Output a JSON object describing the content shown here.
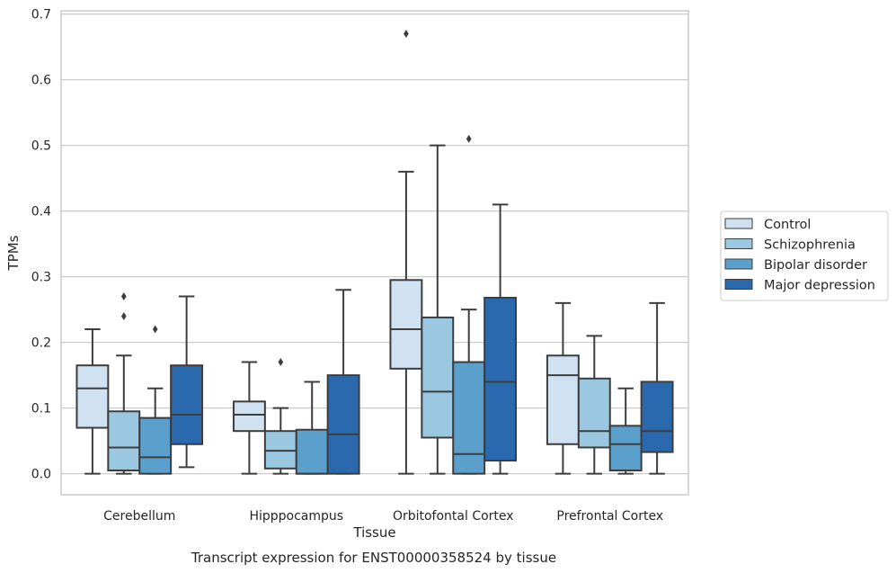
{
  "chart_data": {
    "type": "box",
    "title": "Transcript expression for ENST00000358524 by tissue",
    "xlabel": "Tissue",
    "ylabel": "TPMs",
    "ylim": [
      -0.032,
      0.705
    ],
    "yticks": [
      0.0,
      0.1,
      0.2,
      0.3,
      0.4,
      0.5,
      0.6,
      0.7
    ],
    "ytick_labels": [
      "0.0",
      "0.1",
      "0.2",
      "0.3",
      "0.4",
      "0.5",
      "0.6",
      "0.7"
    ],
    "grid": "horizontal",
    "legend_position": "right",
    "categories": [
      "Cerebellum",
      "Hipppocampus",
      "Orbitofontal Cortex",
      "Prefrontal Cortex"
    ],
    "series": [
      {
        "name": "Control",
        "color": "#d0e1f2",
        "boxes": [
          {
            "whislo": 0.0,
            "q1": 0.07,
            "med": 0.13,
            "q3": 0.165,
            "whishi": 0.22,
            "fliers": []
          },
          {
            "whislo": 0.0,
            "q1": 0.065,
            "med": 0.09,
            "q3": 0.11,
            "whishi": 0.17,
            "fliers": []
          },
          {
            "whislo": 0.0,
            "q1": 0.16,
            "med": 0.22,
            "q3": 0.295,
            "whishi": 0.46,
            "fliers": [
              0.67
            ]
          },
          {
            "whislo": 0.0,
            "q1": 0.045,
            "med": 0.15,
            "q3": 0.18,
            "whishi": 0.26,
            "fliers": []
          }
        ]
      },
      {
        "name": "Schizophrenia",
        "color": "#9ac8e0",
        "boxes": [
          {
            "whislo": 0.0,
            "q1": 0.005,
            "med": 0.04,
            "q3": 0.095,
            "whishi": 0.18,
            "fliers": [
              0.24,
              0.27
            ]
          },
          {
            "whislo": 0.0,
            "q1": 0.008,
            "med": 0.035,
            "q3": 0.065,
            "whishi": 0.1,
            "fliers": [
              0.17
            ]
          },
          {
            "whislo": 0.0,
            "q1": 0.055,
            "med": 0.125,
            "q3": 0.238,
            "whishi": 0.5,
            "fliers": []
          },
          {
            "whislo": 0.0,
            "q1": 0.04,
            "med": 0.065,
            "q3": 0.145,
            "whishi": 0.21,
            "fliers": []
          }
        ]
      },
      {
        "name": "Bipolar disorder",
        "color": "#5b9fcd",
        "boxes": [
          {
            "whislo": 0.0,
            "q1": 0.0,
            "med": 0.025,
            "q3": 0.085,
            "whishi": 0.13,
            "fliers": [
              0.22
            ]
          },
          {
            "whislo": 0.0,
            "q1": 0.0,
            "med": 0.0,
            "q3": 0.067,
            "whishi": 0.14,
            "fliers": []
          },
          {
            "whislo": 0.0,
            "q1": 0.0,
            "med": 0.03,
            "q3": 0.17,
            "whishi": 0.25,
            "fliers": [
              0.51
            ]
          },
          {
            "whislo": 0.0,
            "q1": 0.005,
            "med": 0.045,
            "q3": 0.073,
            "whishi": 0.13,
            "fliers": []
          }
        ]
      },
      {
        "name": "Major depression",
        "color": "#2a69ad",
        "boxes": [
          {
            "whislo": 0.01,
            "q1": 0.045,
            "med": 0.09,
            "q3": 0.165,
            "whishi": 0.27,
            "fliers": []
          },
          {
            "whislo": 0.0,
            "q1": 0.0,
            "med": 0.06,
            "q3": 0.15,
            "whishi": 0.28,
            "fliers": []
          },
          {
            "whislo": 0.0,
            "q1": 0.02,
            "med": 0.14,
            "q3": 0.268,
            "whishi": 0.41,
            "fliers": []
          },
          {
            "whislo": 0.0,
            "q1": 0.033,
            "med": 0.065,
            "q3": 0.14,
            "whishi": 0.26,
            "fliers": []
          }
        ]
      }
    ]
  }
}
